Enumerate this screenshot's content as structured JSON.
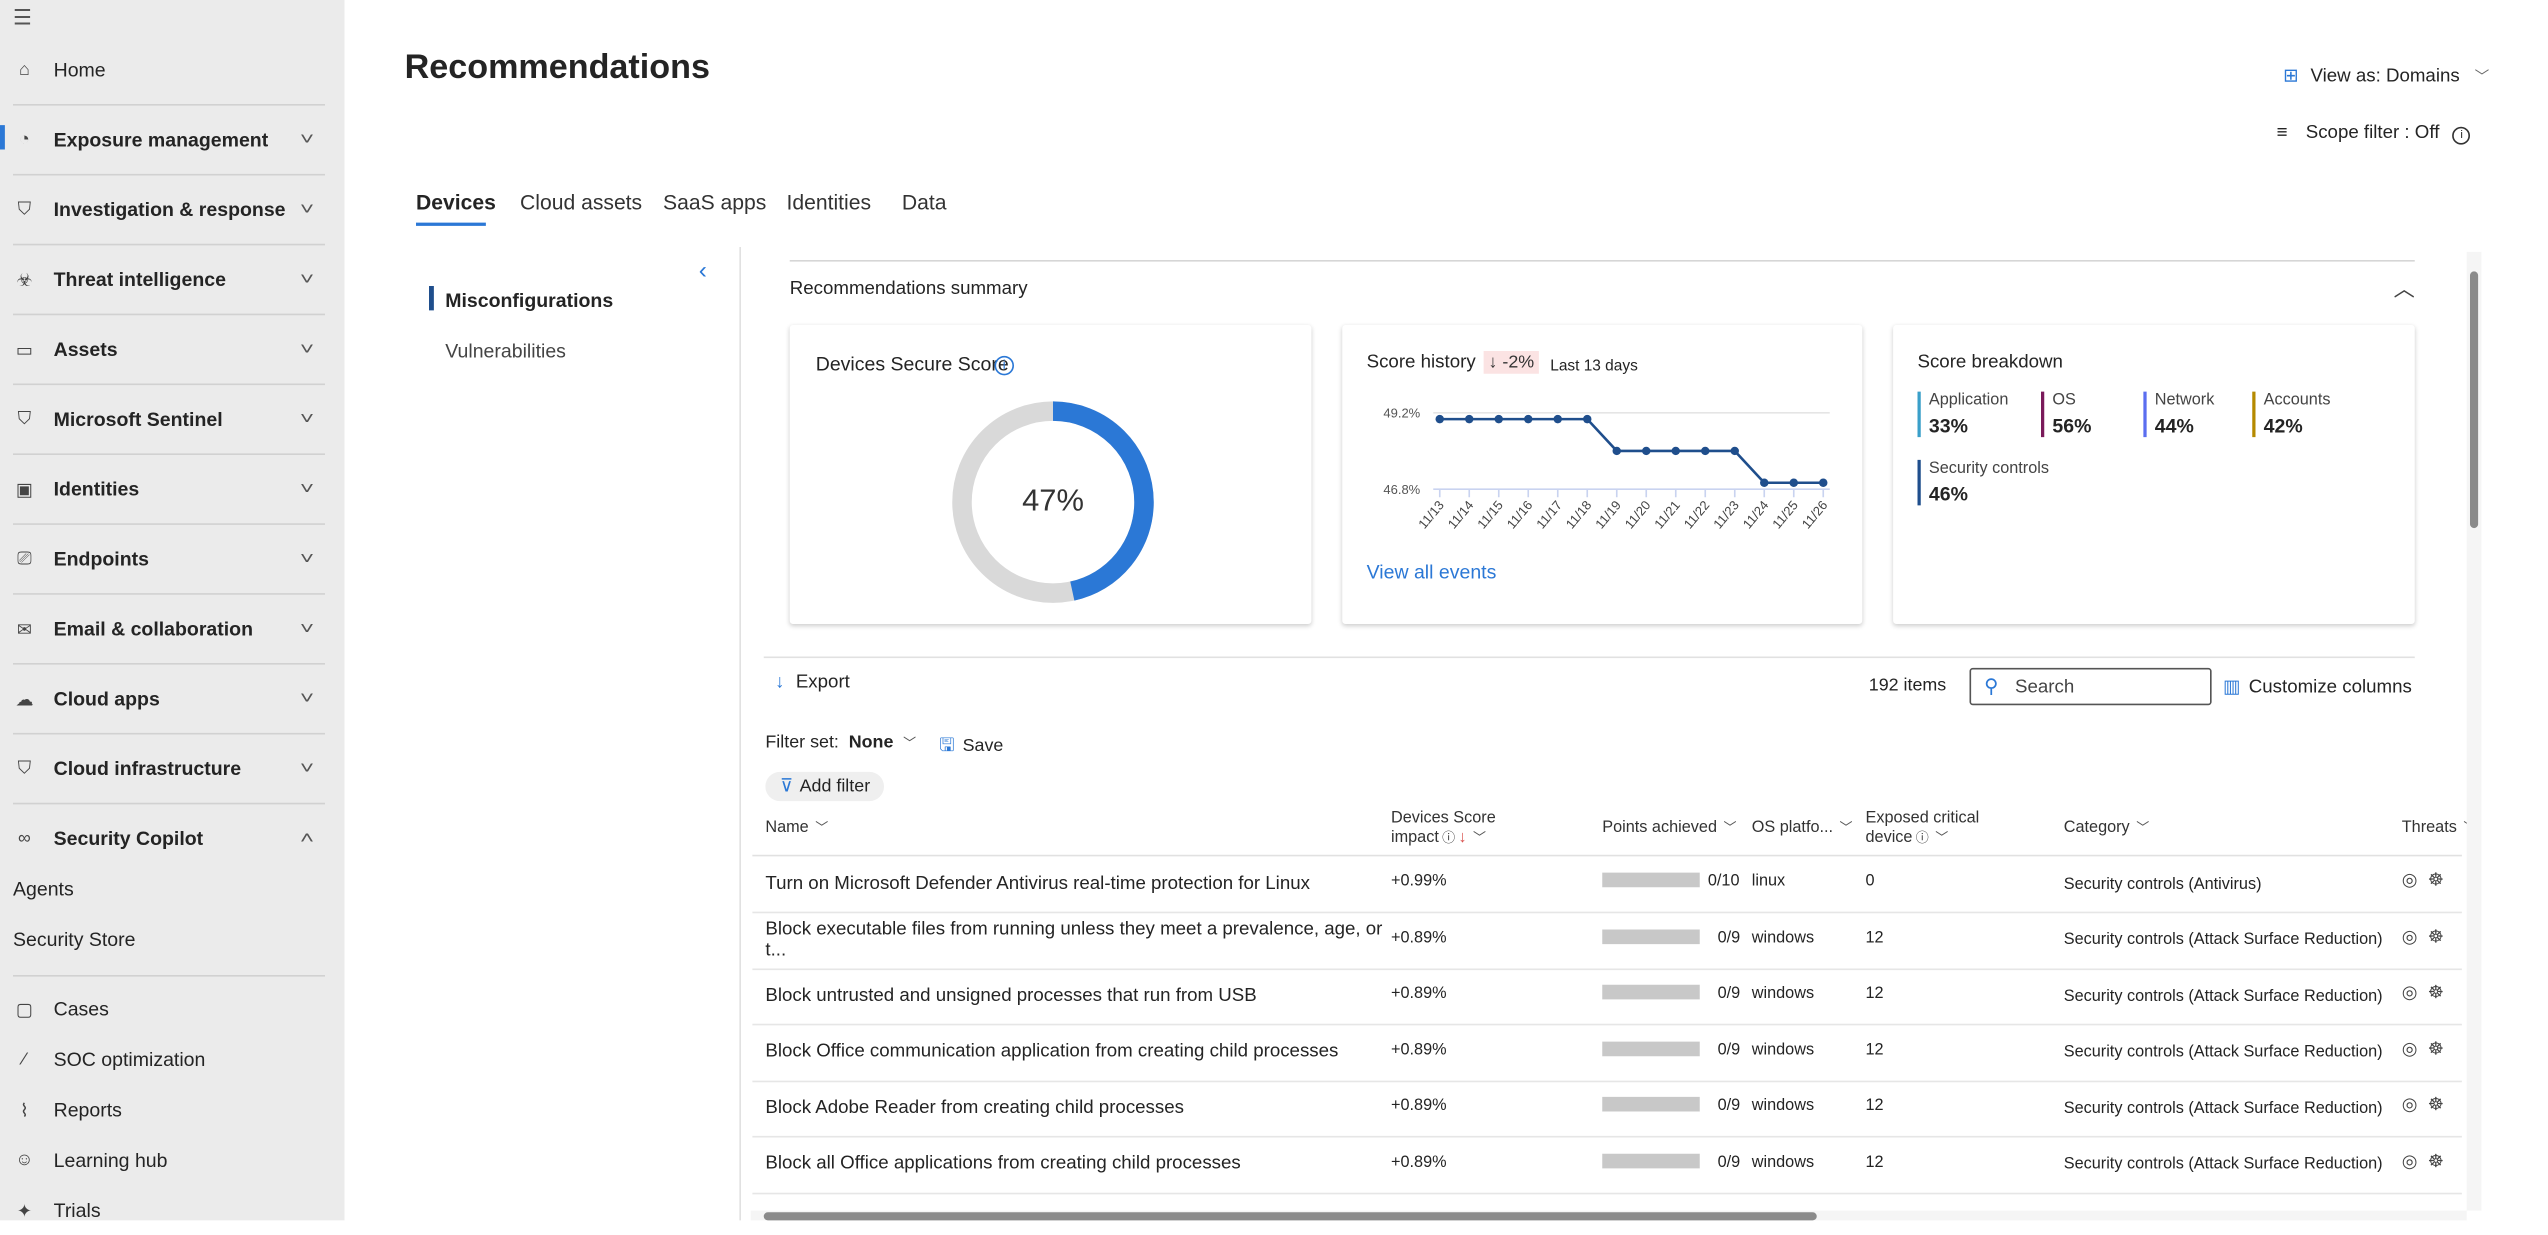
{
  "sidebar": {
    "items": [
      {
        "label": "Home",
        "icon": "home-icon",
        "glyph": "⌂"
      },
      {
        "label": "Exposure management",
        "icon": "gauge-icon",
        "glyph": "◔",
        "expand": "collapsed",
        "active": true
      },
      {
        "label": "Investigation & response",
        "icon": "shield-alert-icon",
        "glyph": "⛉",
        "expand": "collapsed"
      },
      {
        "label": "Threat intelligence",
        "icon": "threat-intel-icon",
        "glyph": "☣",
        "expand": "collapsed"
      },
      {
        "label": "Assets",
        "icon": "assets-icon",
        "glyph": "▭",
        "expand": "collapsed"
      },
      {
        "label": "Microsoft Sentinel",
        "icon": "sentinel-icon",
        "glyph": "⛉",
        "expand": "collapsed"
      },
      {
        "label": "Identities",
        "icon": "identity-card-icon",
        "glyph": "▣",
        "expand": "collapsed"
      },
      {
        "label": "Endpoints",
        "icon": "endpoints-icon",
        "glyph": "⎚",
        "expand": "collapsed"
      },
      {
        "label": "Email & collaboration",
        "icon": "mail-icon",
        "glyph": "✉",
        "expand": "collapsed"
      },
      {
        "label": "Cloud apps",
        "icon": "cloud-icon",
        "glyph": "☁",
        "expand": "collapsed"
      },
      {
        "label": "Cloud infrastructure",
        "icon": "cloud-shield-icon",
        "glyph": "⛉",
        "expand": "collapsed"
      },
      {
        "label": "Security Copilot",
        "icon": "copilot-icon",
        "glyph": "∞",
        "expand": "expanded"
      }
    ],
    "sub_items": [
      {
        "label": "Agents"
      },
      {
        "label": "Security Store"
      }
    ],
    "bottom_items": [
      {
        "label": "Cases",
        "icon": "briefcase-icon",
        "glyph": "▢"
      },
      {
        "label": "SOC optimization",
        "icon": "wand-icon",
        "glyph": "⁄"
      },
      {
        "label": "Reports",
        "icon": "chart-icon",
        "glyph": "⌇"
      },
      {
        "label": "Learning hub",
        "icon": "learning-icon",
        "glyph": "☺"
      },
      {
        "label": "Trials",
        "icon": "trials-icon",
        "glyph": "✦"
      }
    ]
  },
  "header": {
    "title": "Recommendations",
    "view_as": "View as: Domains",
    "scope_filter": "Scope filter : Off"
  },
  "tabs": [
    {
      "label": "Devices",
      "active": true
    },
    {
      "label": "Cloud assets"
    },
    {
      "label": "SaaS apps"
    },
    {
      "label": "Identities"
    },
    {
      "label": "Data"
    }
  ],
  "subnav": [
    {
      "label": "Misconfigurations",
      "active": true
    },
    {
      "label": "Vulnerabilities"
    }
  ],
  "summary": {
    "title": "Recommendations summary",
    "secure_score": {
      "title": "Devices Secure Score",
      "value": 47,
      "label": "47%",
      "colors": {
        "fill": "#2b78d6",
        "track": "#d9d9d9"
      }
    },
    "history": {
      "title": "Score history",
      "change": "-2%",
      "period": "Last 13 days",
      "link": "View all events"
    },
    "breakdown": {
      "title": "Score breakdown",
      "items": [
        {
          "label": "Application",
          "value": "33%",
          "color": "#3a9fc9"
        },
        {
          "label": "OS",
          "value": "56%",
          "color": "#7a1a5a"
        },
        {
          "label": "Network",
          "value": "44%",
          "color": "#5b6ef0"
        },
        {
          "label": "Accounts",
          "value": "42%",
          "color": "#b58a00"
        },
        {
          "label": "Security controls",
          "value": "46%",
          "color": "#1f4e8c"
        }
      ]
    }
  },
  "chart_data": {
    "type": "line",
    "categories": [
      "11/13",
      "11/14",
      "11/15",
      "11/16",
      "11/17",
      "11/18",
      "11/19",
      "11/20",
      "11/21",
      "11/22",
      "11/23",
      "11/24",
      "11/25",
      "11/26"
    ],
    "values": [
      49.0,
      49.0,
      49.0,
      49.0,
      49.0,
      49.0,
      48.0,
      48.0,
      48.0,
      48.0,
      48.0,
      47.0,
      47.0,
      47.0
    ],
    "ytick_labels": [
      "49.2%",
      "46.8%"
    ],
    "ylim": [
      46.8,
      49.2
    ],
    "color": "#1f4e8c",
    "grid": true
  },
  "toolbar": {
    "export": "Export",
    "count": "192 items",
    "search_placeholder": "Search",
    "customize": "Customize columns",
    "filter_set_label": "Filter set:",
    "filter_set_value": "None",
    "save": "Save",
    "add_filter": "Add filter"
  },
  "table": {
    "columns": [
      "Name",
      "Devices Score impact",
      "Points achieved",
      "OS platfo...",
      "Exposed critical device",
      "Category",
      "Threats"
    ],
    "rows": [
      {
        "name": "Turn on Microsoft Defender Antivirus real-time protection for Linux",
        "impact": "+0.99%",
        "points": "0/10",
        "points_fraction": 0,
        "os": "linux",
        "exposed": "0",
        "category": "Security controls (Antivirus)"
      },
      {
        "name": "Block executable files from running unless they meet a prevalence, age, or t...",
        "impact": "+0.89%",
        "points": "0/9",
        "points_fraction": 0,
        "os": "windows",
        "exposed": "12",
        "category": "Security controls (Attack Surface Reduction)"
      },
      {
        "name": "Block untrusted and unsigned processes that run from USB",
        "impact": "+0.89%",
        "points": "0/9",
        "points_fraction": 0,
        "os": "windows",
        "exposed": "12",
        "category": "Security controls (Attack Surface Reduction)"
      },
      {
        "name": "Block Office communication application from creating child processes",
        "impact": "+0.89%",
        "points": "0/9",
        "points_fraction": 0,
        "os": "windows",
        "exposed": "12",
        "category": "Security controls (Attack Surface Reduction)"
      },
      {
        "name": "Block Adobe Reader from creating child processes",
        "impact": "+0.89%",
        "points": "0/9",
        "points_fraction": 0,
        "os": "windows",
        "exposed": "12",
        "category": "Security controls (Attack Surface Reduction)"
      },
      {
        "name": "Block all Office applications from creating child processes",
        "impact": "+0.89%",
        "points": "0/9",
        "points_fraction": 0,
        "os": "windows",
        "exposed": "12",
        "category": "Security controls (Attack Surface Reduction)"
      }
    ]
  }
}
